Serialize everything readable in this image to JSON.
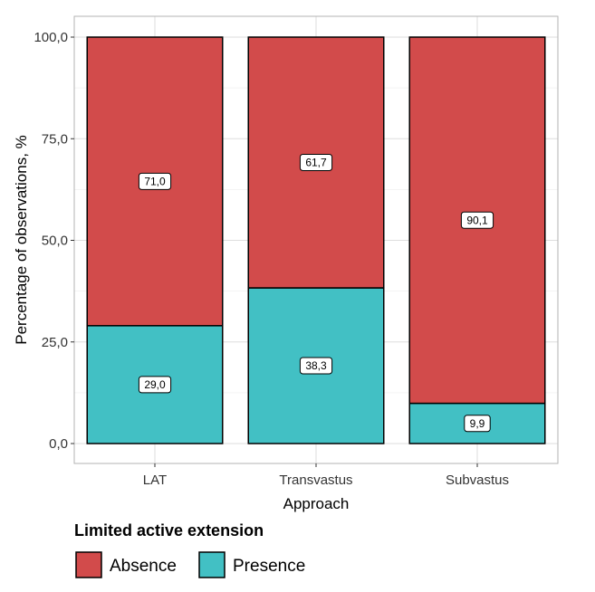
{
  "chart_data": {
    "type": "bar",
    "stacked": true,
    "categories": [
      "LAT",
      "Transvastus",
      "Subvastus"
    ],
    "series": [
      {
        "name": "Presence",
        "values": [
          29.0,
          38.3,
          9.9
        ],
        "labels": [
          "29,0",
          "38,3",
          "9,9"
        ],
        "color": "#42c0c4"
      },
      {
        "name": "Absence",
        "values": [
          71.0,
          61.7,
          90.1
        ],
        "labels": [
          "71,0",
          "61,7",
          "90,1"
        ],
        "color": "#d24b4b"
      }
    ],
    "xlabel": "Approach",
    "ylabel": "Percentage of observations, %",
    "ylim": [
      0,
      100
    ],
    "yticks": [
      0,
      25,
      50,
      75,
      100
    ],
    "ytick_labels": [
      "0,0",
      "25,0",
      "50,0",
      "75,0",
      "100,0"
    ],
    "grid": true,
    "legend": {
      "title": "Limited active extension",
      "position": "bottom-left",
      "items": [
        {
          "label": "Absence",
          "color": "#d24b4b"
        },
        {
          "label": "Presence",
          "color": "#42c0c4"
        }
      ]
    }
  }
}
